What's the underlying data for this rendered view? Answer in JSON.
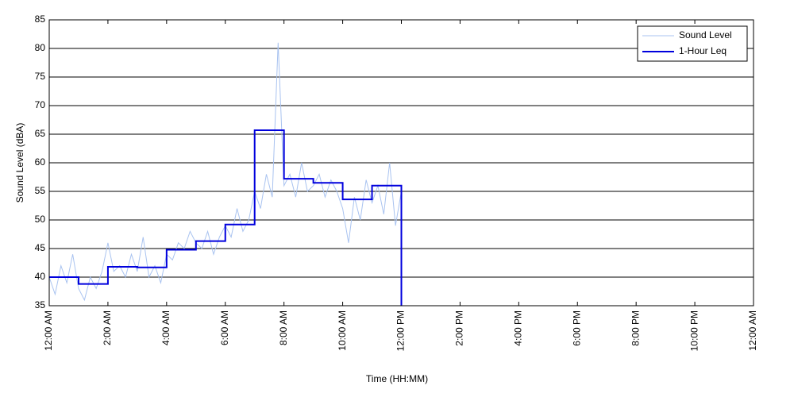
{
  "chart_data": {
    "type": "line",
    "xlabel": "Time (HH:MM)",
    "ylabel": "Sound Level (dBA)",
    "xlim": [
      0,
      24
    ],
    "ylim": [
      35,
      85
    ],
    "xticks": [
      {
        "value": 0,
        "label": "12:00 AM"
      },
      {
        "value": 2,
        "label": "2:00 AM"
      },
      {
        "value": 4,
        "label": "4:00 AM"
      },
      {
        "value": 6,
        "label": "6:00 AM"
      },
      {
        "value": 8,
        "label": "8:00 AM"
      },
      {
        "value": 10,
        "label": "10:00 AM"
      },
      {
        "value": 12,
        "label": "12:00 PM"
      },
      {
        "value": 14,
        "label": "2:00 PM"
      },
      {
        "value": 16,
        "label": "4:00 PM"
      },
      {
        "value": 18,
        "label": "6:00 PM"
      },
      {
        "value": 20,
        "label": "8:00 PM"
      },
      {
        "value": 22,
        "label": "10:00 PM"
      },
      {
        "value": 24,
        "label": "12:00 AM"
      }
    ],
    "yticks": [
      35,
      40,
      45,
      50,
      55,
      60,
      65,
      70,
      75,
      80,
      85
    ],
    "grid": true,
    "legend": "upper-right",
    "series": [
      {
        "name": "Sound Level",
        "color": "#a9c3f0",
        "x": [
          0,
          0.2,
          0.4,
          0.6,
          0.8,
          1,
          1.2,
          1.4,
          1.6,
          1.8,
          2,
          2.2,
          2.4,
          2.6,
          2.8,
          3,
          3.2,
          3.4,
          3.6,
          3.8,
          4,
          4.2,
          4.4,
          4.6,
          4.8,
          5,
          5.2,
          5.4,
          5.6,
          5.8,
          6,
          6.2,
          6.4,
          6.6,
          6.8,
          7,
          7.2,
          7.4,
          7.6,
          7.8,
          8,
          8.2,
          8.4,
          8.6,
          8.8,
          9,
          9.2,
          9.4,
          9.6,
          9.8,
          10,
          10.2,
          10.4,
          10.6,
          10.8,
          11,
          11.2,
          11.4,
          11.6,
          11.8,
          12
        ],
        "values": [
          40,
          37,
          42,
          39,
          44,
          38,
          36,
          40,
          38,
          41,
          46,
          41,
          42,
          40,
          44,
          41,
          47,
          40,
          42,
          39,
          44,
          43,
          46,
          45,
          48,
          46,
          45,
          48,
          44,
          47,
          49,
          47,
          52,
          48,
          50,
          55,
          52,
          58,
          54,
          81,
          56,
          58,
          54,
          60,
          55,
          56,
          58,
          54,
          57,
          55,
          52,
          46,
          54,
          50,
          57,
          53,
          56,
          51,
          60,
          49,
          55
        ]
      },
      {
        "name": "1-Hour Leq",
        "color": "#0000dd",
        "x": [
          0,
          1,
          1,
          2,
          2,
          3,
          3,
          4,
          4,
          5,
          5,
          6,
          6,
          7,
          7,
          8,
          8,
          9,
          9,
          10,
          10,
          11,
          11,
          12,
          12
        ],
        "values": [
          40,
          40,
          38.8,
          38.8,
          41.8,
          41.8,
          41.7,
          41.7,
          44.8,
          44.8,
          46.3,
          46.3,
          49.2,
          49.2,
          65.7,
          65.7,
          57.2,
          57.2,
          56.5,
          56.5,
          53.6,
          53.6,
          56,
          56,
          35
        ]
      }
    ]
  }
}
